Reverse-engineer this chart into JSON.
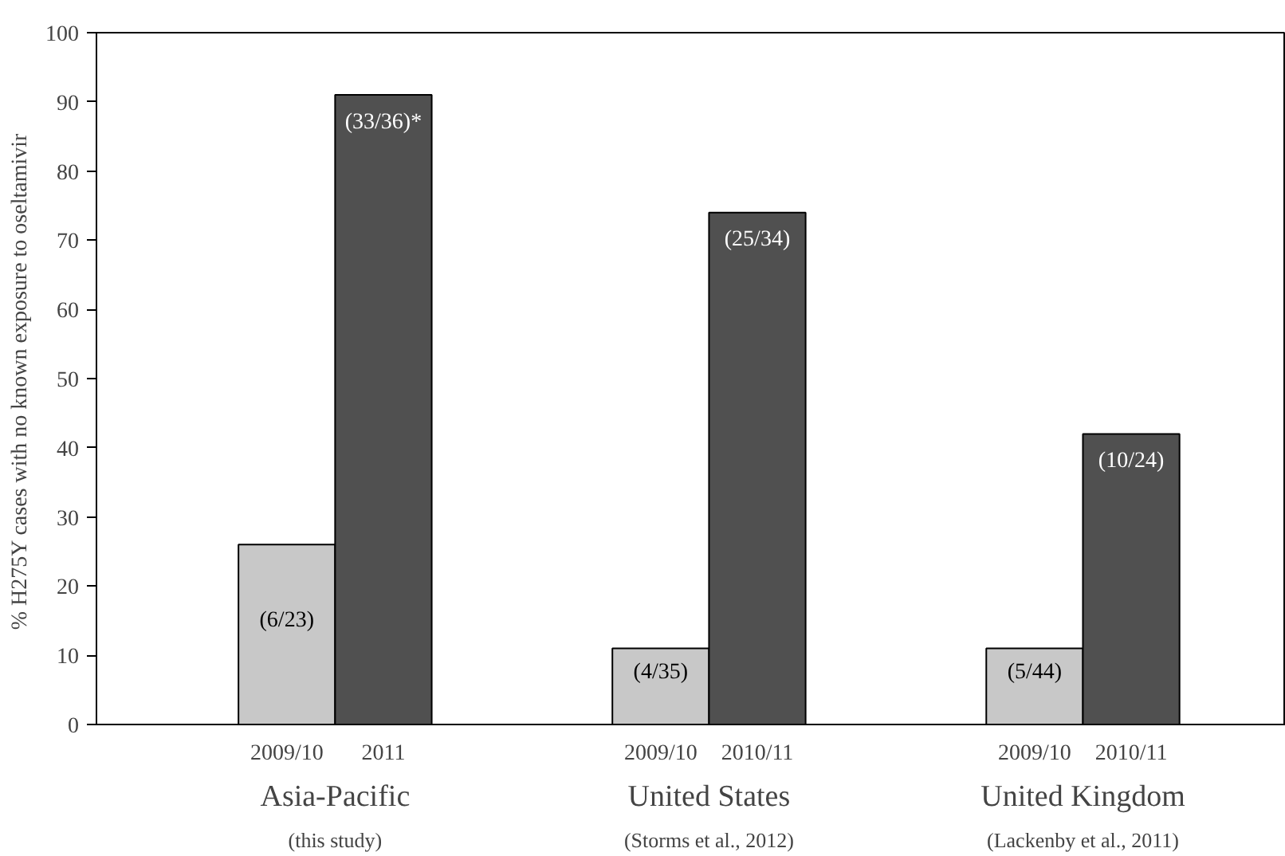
{
  "chart_data": {
    "type": "bar",
    "ylabel": "%  H275Y cases with no known exposure to oseltamivir",
    "categories": [
      "2009/10",
      "2011",
      "2009/10",
      "2010/11",
      "2009/10",
      "2010/11"
    ],
    "values": [
      26,
      91,
      11,
      74,
      11,
      42
    ],
    "colors": [
      "#c8c8c8",
      "#505050",
      "#c8c8c8",
      "#505050",
      "#c8c8c8",
      "#505050"
    ],
    "value_labels": [
      "(6/23)",
      "(33/36)*",
      "(4/35)",
      "(25/34)",
      "(5/44)",
      "(10/24)"
    ],
    "annotations": [
      "Asia-Pacific",
      "(this study)",
      "United States",
      "(Storms et al., 2012)",
      "United Kingdom",
      "(Lackenby et al., 2011)"
    ],
    "ylim": [
      0,
      100
    ],
    "yticks": [
      0,
      10,
      20,
      30,
      40,
      50,
      60,
      70,
      80,
      90,
      100
    ],
    "grid": false
  }
}
